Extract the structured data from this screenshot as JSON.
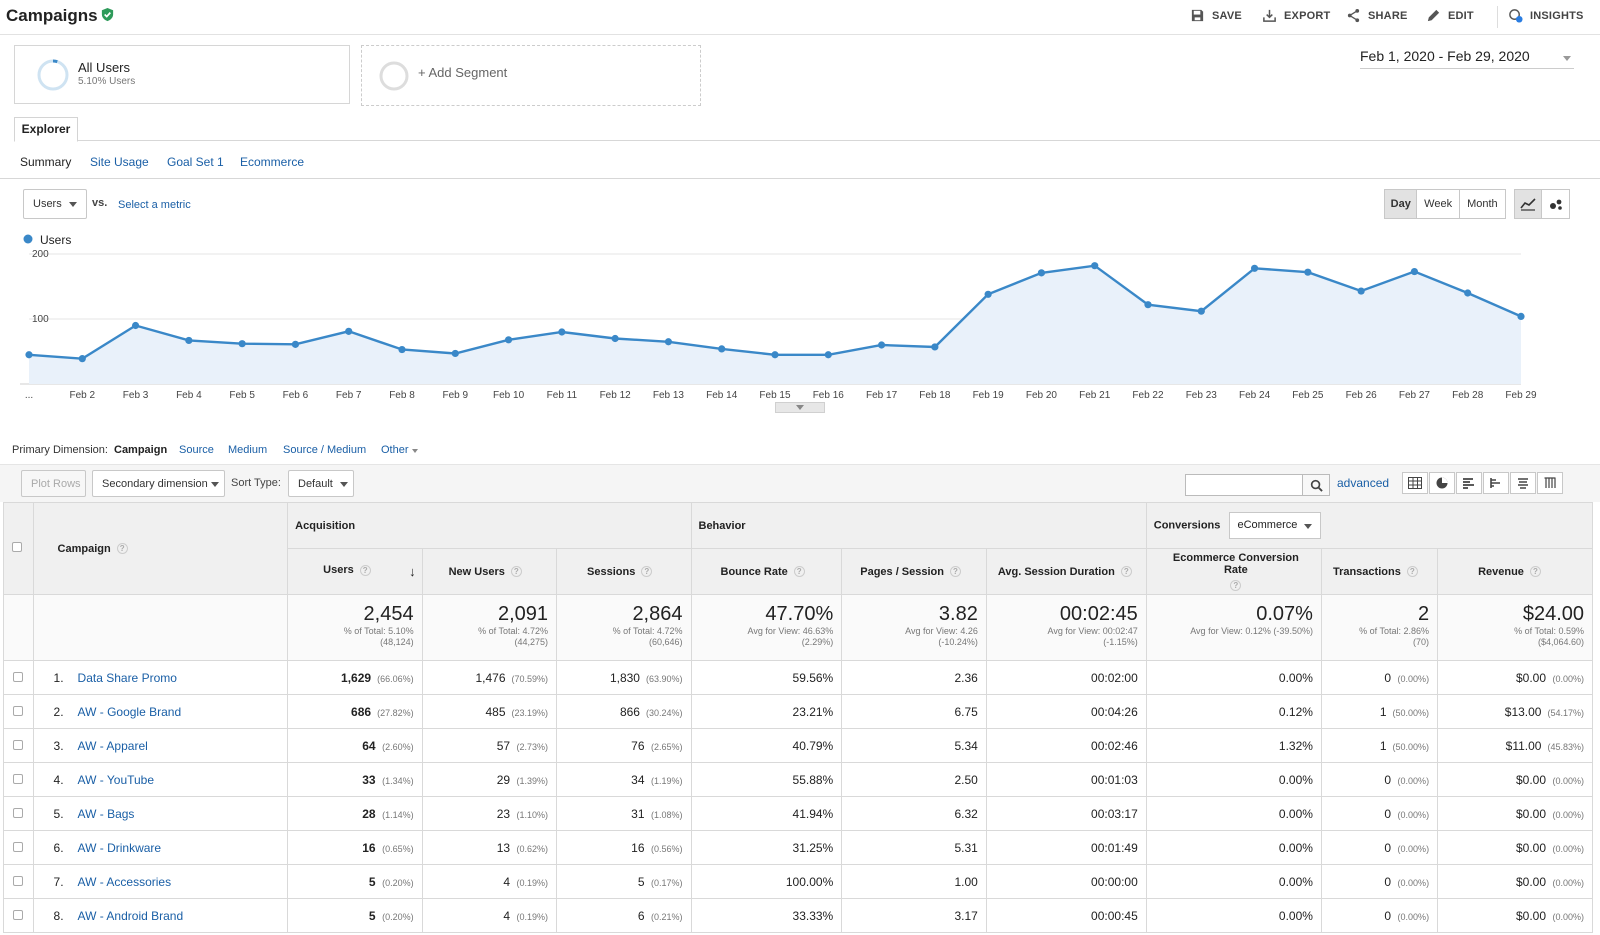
{
  "header": {
    "title": "Campaigns",
    "actions": {
      "save": "SAVE",
      "export": "EXPORT",
      "share": "SHARE",
      "edit": "EDIT",
      "insights": "INSIGHTS"
    }
  },
  "segments": {
    "all_users_name": "All Users",
    "all_users_sub": "5.10% Users",
    "add_segment": "+ Add Segment"
  },
  "date_range": "Feb 1, 2020 - Feb 29, 2020",
  "explorer": {
    "tab": "Explorer",
    "subtabs": [
      "Summary",
      "Site Usage",
      "Goal Set 1",
      "Ecommerce"
    ]
  },
  "chart_controls": {
    "metric": "Users",
    "vs": "vs.",
    "select_metric": "Select a metric",
    "day": "Day",
    "week": "Week",
    "month": "Month"
  },
  "chart_data": {
    "type": "area",
    "series": [
      {
        "name": "Users",
        "values": [
          45,
          39,
          90,
          67,
          62,
          61,
          81,
          53,
          47,
          68,
          80,
          70,
          65,
          54,
          45,
          45,
          60,
          57,
          138,
          171,
          182,
          122,
          112,
          178,
          172,
          143,
          173,
          140,
          104
        ]
      }
    ],
    "x": [
      "...",
      "Feb 2",
      "Feb 3",
      "Feb 4",
      "Feb 5",
      "Feb 6",
      "Feb 7",
      "Feb 8",
      "Feb 9",
      "Feb 10",
      "Feb 11",
      "Feb 12",
      "Feb 13",
      "Feb 14",
      "Feb 15",
      "Feb 16",
      "Feb 17",
      "Feb 18",
      "Feb 19",
      "Feb 20",
      "Feb 21",
      "Feb 22",
      "Feb 23",
      "Feb 24",
      "Feb 25",
      "Feb 26",
      "Feb 27",
      "Feb 28",
      "Feb 29"
    ],
    "yticks": [
      "200",
      "100"
    ],
    "ytick_values": [
      200,
      100
    ],
    "ylim": [
      0,
      200
    ],
    "legend": "top-left",
    "grid": true,
    "color": "#3a88c8"
  },
  "dimensions": {
    "label": "Primary Dimension:",
    "active": "Campaign",
    "options": [
      "Source",
      "Medium",
      "Source / Medium",
      "Other"
    ]
  },
  "toolbar": {
    "plot_rows": "Plot Rows",
    "secondary": "Secondary dimension",
    "sort_label": "Sort Type:",
    "sort_value": "Default",
    "search_value": "",
    "advanced": "advanced"
  },
  "table": {
    "campaign_header": "Campaign",
    "groups": {
      "acquisition": "Acquisition",
      "behavior": "Behavior",
      "conversions": "Conversions",
      "conversions_select": "eCommerce"
    },
    "columns": [
      "Users",
      "New Users",
      "Sessions",
      "Bounce Rate",
      "Pages / Session",
      "Avg. Session Duration",
      "Ecommerce Conversion Rate",
      "Transactions",
      "Revenue"
    ],
    "totals": [
      {
        "value": "2,454",
        "l1": "% of Total: 5.10%",
        "l2": "(48,124)"
      },
      {
        "value": "2,091",
        "l1": "% of Total: 4.72%",
        "l2": "(44,275)"
      },
      {
        "value": "2,864",
        "l1": "% of Total: 4.72%",
        "l2": "(60,646)"
      },
      {
        "value": "47.70%",
        "l1": "Avg for View: 46.63%",
        "l2": "(2.29%)"
      },
      {
        "value": "3.82",
        "l1": "Avg for View: 4.26",
        "l2": "(-10.24%)"
      },
      {
        "value": "00:02:45",
        "l1": "Avg for View: 00:02:47",
        "l2": "(-1.15%)"
      },
      {
        "value": "0.07%",
        "l1": "Avg for View: 0.12% (-39.50%)",
        "l2": ""
      },
      {
        "value": "2",
        "l1": "% of Total: 2.86%",
        "l2": "(70)"
      },
      {
        "value": "$24.00",
        "l1": "% of Total: 0.59%",
        "l2": "($4,064.60)"
      }
    ],
    "rows": [
      {
        "idx": "1.",
        "name": "Data Share Promo",
        "users": "1,629",
        "users_pct": "(66.06%)",
        "new": "1,476",
        "new_pct": "(70.59%)",
        "sessions": "1,830",
        "sessions_pct": "(63.90%)",
        "bounce": "59.56%",
        "pps": "2.36",
        "dur": "00:02:00",
        "conv": "0.00%",
        "trans": "0",
        "trans_pct": "(0.00%)",
        "rev": "$0.00",
        "rev_pct": "(0.00%)"
      },
      {
        "idx": "2.",
        "name": "AW - Google Brand",
        "users": "686",
        "users_pct": "(27.82%)",
        "new": "485",
        "new_pct": "(23.19%)",
        "sessions": "866",
        "sessions_pct": "(30.24%)",
        "bounce": "23.21%",
        "pps": "6.75",
        "dur": "00:04:26",
        "conv": "0.12%",
        "trans": "1",
        "trans_pct": "(50.00%)",
        "rev": "$13.00",
        "rev_pct": "(54.17%)"
      },
      {
        "idx": "3.",
        "name": "AW - Apparel",
        "users": "64",
        "users_pct": "(2.60%)",
        "new": "57",
        "new_pct": "(2.73%)",
        "sessions": "76",
        "sessions_pct": "(2.65%)",
        "bounce": "40.79%",
        "pps": "5.34",
        "dur": "00:02:46",
        "conv": "1.32%",
        "trans": "1",
        "trans_pct": "(50.00%)",
        "rev": "$11.00",
        "rev_pct": "(45.83%)"
      },
      {
        "idx": "4.",
        "name": "AW - YouTube",
        "users": "33",
        "users_pct": "(1.34%)",
        "new": "29",
        "new_pct": "(1.39%)",
        "sessions": "34",
        "sessions_pct": "(1.19%)",
        "bounce": "55.88%",
        "pps": "2.50",
        "dur": "00:01:03",
        "conv": "0.00%",
        "trans": "0",
        "trans_pct": "(0.00%)",
        "rev": "$0.00",
        "rev_pct": "(0.00%)"
      },
      {
        "idx": "5.",
        "name": "AW - Bags",
        "users": "28",
        "users_pct": "(1.14%)",
        "new": "23",
        "new_pct": "(1.10%)",
        "sessions": "31",
        "sessions_pct": "(1.08%)",
        "bounce": "41.94%",
        "pps": "6.32",
        "dur": "00:03:17",
        "conv": "0.00%",
        "trans": "0",
        "trans_pct": "(0.00%)",
        "rev": "$0.00",
        "rev_pct": "(0.00%)"
      },
      {
        "idx": "6.",
        "name": "AW - Drinkware",
        "users": "16",
        "users_pct": "(0.65%)",
        "new": "13",
        "new_pct": "(0.62%)",
        "sessions": "16",
        "sessions_pct": "(0.56%)",
        "bounce": "31.25%",
        "pps": "5.31",
        "dur": "00:01:49",
        "conv": "0.00%",
        "trans": "0",
        "trans_pct": "(0.00%)",
        "rev": "$0.00",
        "rev_pct": "(0.00%)"
      },
      {
        "idx": "7.",
        "name": "AW - Accessories",
        "users": "5",
        "users_pct": "(0.20%)",
        "new": "4",
        "new_pct": "(0.19%)",
        "sessions": "5",
        "sessions_pct": "(0.17%)",
        "bounce": "100.00%",
        "pps": "1.00",
        "dur": "00:00:00",
        "conv": "0.00%",
        "trans": "0",
        "trans_pct": "(0.00%)",
        "rev": "$0.00",
        "rev_pct": "(0.00%)"
      },
      {
        "idx": "8.",
        "name": "AW - Android Brand",
        "users": "5",
        "users_pct": "(0.20%)",
        "new": "4",
        "new_pct": "(0.19%)",
        "sessions": "6",
        "sessions_pct": "(0.21%)",
        "bounce": "33.33%",
        "pps": "3.17",
        "dur": "00:00:45",
        "conv": "0.00%",
        "trans": "0",
        "trans_pct": "(0.00%)",
        "rev": "$0.00",
        "rev_pct": "(0.00%)"
      }
    ]
  },
  "colors": {
    "accent": "#3a88c8",
    "link": "#1a5fa6",
    "verified": "#2e9a5a"
  }
}
